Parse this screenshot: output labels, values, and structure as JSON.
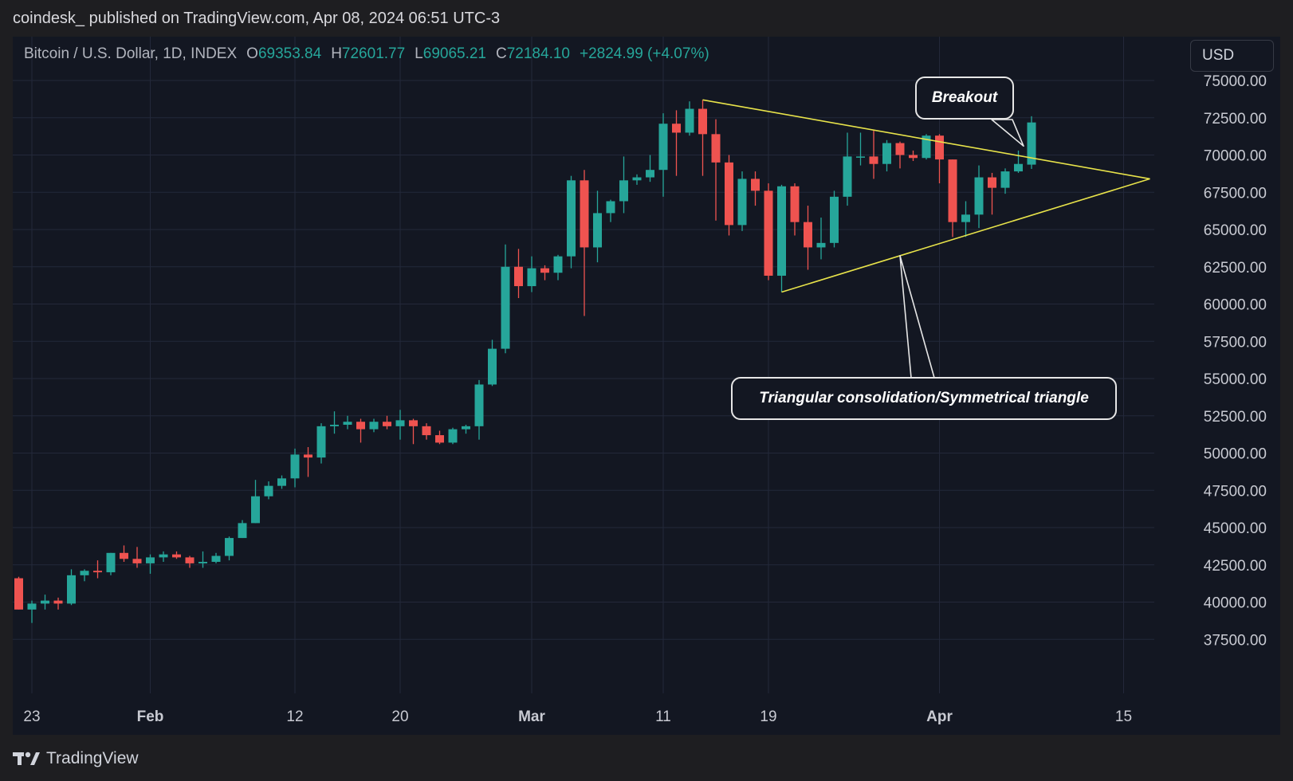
{
  "header": {
    "publisher_line": "coindesk_ published on TradingView.com, Apr 08, 2024 06:51 UTC-3"
  },
  "legend": {
    "symbol": "Bitcoin / U.S. Dollar, 1D, INDEX",
    "open_label": "O",
    "open": "69353.84",
    "high_label": "H",
    "high": "72601.77",
    "low_label": "L",
    "low": "69065.21",
    "close_label": "C",
    "close": "72184.10",
    "change": "+2824.99 (+4.07%)"
  },
  "currency_button": {
    "label": "USD"
  },
  "footer": {
    "brand": "TradingView",
    "logo_icon": "tradingview-logo-icon"
  },
  "colors": {
    "up": "#26a69a",
    "down": "#ef5350",
    "trendline": "#e8e34a",
    "background": "#131722",
    "grid": "#23283a",
    "axis_text": "#c8cad2"
  },
  "annotations": [
    {
      "text": "Breakout"
    },
    {
      "text": "Triangular consolidation/Symmetrical triangle"
    }
  ],
  "chart_data": {
    "type": "candlestick",
    "title": "Bitcoin / U.S. Dollar, 1D, INDEX",
    "currency": "USD",
    "ylim": [
      35000,
      75500
    ],
    "y_ticks": [
      "75000.00",
      "72500.00",
      "70000.00",
      "67500.00",
      "65000.00",
      "62500.00",
      "60000.00",
      "57500.00",
      "55000.00",
      "52500.00",
      "50000.00",
      "47500.00",
      "45000.00",
      "42500.00",
      "40000.00",
      "37500.00"
    ],
    "x_ticks": [
      {
        "label": "23",
        "date": "2024-01-23"
      },
      {
        "label": "Feb",
        "date": "2024-02-01"
      },
      {
        "label": "12",
        "date": "2024-02-12"
      },
      {
        "label": "20",
        "date": "2024-02-20"
      },
      {
        "label": "Mar",
        "date": "2024-03-01"
      },
      {
        "label": "11",
        "date": "2024-03-11"
      },
      {
        "label": "19",
        "date": "2024-03-19"
      },
      {
        "label": "Apr",
        "date": "2024-04-01"
      },
      {
        "label": "15",
        "date": "2024-04-15"
      }
    ],
    "grid": true,
    "candles": [
      {
        "date": "2024-01-22",
        "o": 41600,
        "h": 41700,
        "l": 39500,
        "c": 39500
      },
      {
        "date": "2024-01-23",
        "o": 39500,
        "h": 40100,
        "l": 38600,
        "c": 39900
      },
      {
        "date": "2024-01-24",
        "o": 39900,
        "h": 40500,
        "l": 39500,
        "c": 40100
      },
      {
        "date": "2024-01-25",
        "o": 40100,
        "h": 40300,
        "l": 39500,
        "c": 39900
      },
      {
        "date": "2024-01-26",
        "o": 39900,
        "h": 42200,
        "l": 39800,
        "c": 41800
      },
      {
        "date": "2024-01-27",
        "o": 41800,
        "h": 42200,
        "l": 41400,
        "c": 42100
      },
      {
        "date": "2024-01-28",
        "o": 42100,
        "h": 42800,
        "l": 41600,
        "c": 42000
      },
      {
        "date": "2024-01-29",
        "o": 42000,
        "h": 43300,
        "l": 41800,
        "c": 43300
      },
      {
        "date": "2024-01-30",
        "o": 43300,
        "h": 43800,
        "l": 42700,
        "c": 42900
      },
      {
        "date": "2024-01-31",
        "o": 42900,
        "h": 43700,
        "l": 42300,
        "c": 42600
      },
      {
        "date": "2024-02-01",
        "o": 42600,
        "h": 43200,
        "l": 41900,
        "c": 43000
      },
      {
        "date": "2024-02-02",
        "o": 43000,
        "h": 43400,
        "l": 42700,
        "c": 43200
      },
      {
        "date": "2024-02-03",
        "o": 43200,
        "h": 43400,
        "l": 42900,
        "c": 43000
      },
      {
        "date": "2024-02-04",
        "o": 43000,
        "h": 43100,
        "l": 42300,
        "c": 42600
      },
      {
        "date": "2024-02-05",
        "o": 42600,
        "h": 43400,
        "l": 42300,
        "c": 42700
      },
      {
        "date": "2024-02-06",
        "o": 42700,
        "h": 43300,
        "l": 42600,
        "c": 43100
      },
      {
        "date": "2024-02-07",
        "o": 43100,
        "h": 44400,
        "l": 42800,
        "c": 44300
      },
      {
        "date": "2024-02-08",
        "o": 44300,
        "h": 45500,
        "l": 44300,
        "c": 45300
      },
      {
        "date": "2024-02-09",
        "o": 45300,
        "h": 48200,
        "l": 45300,
        "c": 47100
      },
      {
        "date": "2024-02-10",
        "o": 47100,
        "h": 48100,
        "l": 46900,
        "c": 47800
      },
      {
        "date": "2024-02-11",
        "o": 47800,
        "h": 48500,
        "l": 47600,
        "c": 48300
      },
      {
        "date": "2024-02-12",
        "o": 48300,
        "h": 50300,
        "l": 47700,
        "c": 49900
      },
      {
        "date": "2024-02-13",
        "o": 49900,
        "h": 50400,
        "l": 48400,
        "c": 49700
      },
      {
        "date": "2024-02-14",
        "o": 49700,
        "h": 52000,
        "l": 49300,
        "c": 51800
      },
      {
        "date": "2024-02-15",
        "o": 51800,
        "h": 52800,
        "l": 51300,
        "c": 51900
      },
      {
        "date": "2024-02-16",
        "o": 51900,
        "h": 52500,
        "l": 51600,
        "c": 52100
      },
      {
        "date": "2024-02-17",
        "o": 52100,
        "h": 52300,
        "l": 50700,
        "c": 51600
      },
      {
        "date": "2024-02-18",
        "o": 51600,
        "h": 52300,
        "l": 51400,
        "c": 52100
      },
      {
        "date": "2024-02-19",
        "o": 52100,
        "h": 52500,
        "l": 51600,
        "c": 51800
      },
      {
        "date": "2024-02-20",
        "o": 51800,
        "h": 52900,
        "l": 50900,
        "c": 52200
      },
      {
        "date": "2024-02-21",
        "o": 52200,
        "h": 52300,
        "l": 50600,
        "c": 51800
      },
      {
        "date": "2024-02-22",
        "o": 51800,
        "h": 52000,
        "l": 50900,
        "c": 51200
      },
      {
        "date": "2024-02-23",
        "o": 51200,
        "h": 51500,
        "l": 50600,
        "c": 50700
      },
      {
        "date": "2024-02-24",
        "o": 50700,
        "h": 51700,
        "l": 50600,
        "c": 51600
      },
      {
        "date": "2024-02-25",
        "o": 51600,
        "h": 51900,
        "l": 51300,
        "c": 51800
      },
      {
        "date": "2024-02-26",
        "o": 51800,
        "h": 54900,
        "l": 50900,
        "c": 54600
      },
      {
        "date": "2024-02-27",
        "o": 54600,
        "h": 57600,
        "l": 54500,
        "c": 57000
      },
      {
        "date": "2024-02-28",
        "o": 57000,
        "h": 64000,
        "l": 56700,
        "c": 62500
      },
      {
        "date": "2024-02-29",
        "o": 62500,
        "h": 63700,
        "l": 60400,
        "c": 61200
      },
      {
        "date": "2024-03-01",
        "o": 61200,
        "h": 63200,
        "l": 60800,
        "c": 62400
      },
      {
        "date": "2024-03-02",
        "o": 62400,
        "h": 62600,
        "l": 61600,
        "c": 62100
      },
      {
        "date": "2024-03-03",
        "o": 62100,
        "h": 63300,
        "l": 61600,
        "c": 63200
      },
      {
        "date": "2024-03-04",
        "o": 63200,
        "h": 68600,
        "l": 62400,
        "c": 68300
      },
      {
        "date": "2024-03-05",
        "o": 68300,
        "h": 69000,
        "l": 59200,
        "c": 63800
      },
      {
        "date": "2024-03-06",
        "o": 63800,
        "h": 67600,
        "l": 62800,
        "c": 66100
      },
      {
        "date": "2024-03-07",
        "o": 66100,
        "h": 67000,
        "l": 65500,
        "c": 66900
      },
      {
        "date": "2024-03-08",
        "o": 66900,
        "h": 69900,
        "l": 66100,
        "c": 68300
      },
      {
        "date": "2024-03-09",
        "o": 68300,
        "h": 68700,
        "l": 68000,
        "c": 68500
      },
      {
        "date": "2024-03-10",
        "o": 68500,
        "h": 70000,
        "l": 68200,
        "c": 69000
      },
      {
        "date": "2024-03-11",
        "o": 69000,
        "h": 72800,
        "l": 67200,
        "c": 72100
      },
      {
        "date": "2024-03-12",
        "o": 72100,
        "h": 73000,
        "l": 68600,
        "c": 71500
      },
      {
        "date": "2024-03-13",
        "o": 71500,
        "h": 73600,
        "l": 71300,
        "c": 73100
      },
      {
        "date": "2024-03-14",
        "o": 73100,
        "h": 73700,
        "l": 68600,
        "c": 71400
      },
      {
        "date": "2024-03-15",
        "o": 71400,
        "h": 72400,
        "l": 65600,
        "c": 69500
      },
      {
        "date": "2024-03-16",
        "o": 69500,
        "h": 70000,
        "l": 64600,
        "c": 65300
      },
      {
        "date": "2024-03-17",
        "o": 65300,
        "h": 68900,
        "l": 64900,
        "c": 68400
      },
      {
        "date": "2024-03-18",
        "o": 68400,
        "h": 68900,
        "l": 66600,
        "c": 67600
      },
      {
        "date": "2024-03-19",
        "o": 67600,
        "h": 68100,
        "l": 61600,
        "c": 61900
      },
      {
        "date": "2024-03-20",
        "o": 61900,
        "h": 68000,
        "l": 60800,
        "c": 67900
      },
      {
        "date": "2024-03-21",
        "o": 67900,
        "h": 68100,
        "l": 64600,
        "c": 65500
      },
      {
        "date": "2024-03-22",
        "o": 65500,
        "h": 66600,
        "l": 62300,
        "c": 63800
      },
      {
        "date": "2024-03-23",
        "o": 63800,
        "h": 65800,
        "l": 63000,
        "c": 64100
      },
      {
        "date": "2024-03-24",
        "o": 64100,
        "h": 67600,
        "l": 63800,
        "c": 67200
      },
      {
        "date": "2024-03-25",
        "o": 67200,
        "h": 71500,
        "l": 66600,
        "c": 69900
      },
      {
        "date": "2024-03-26",
        "o": 69900,
        "h": 71500,
        "l": 69300,
        "c": 69900
      },
      {
        "date": "2024-03-27",
        "o": 69900,
        "h": 71700,
        "l": 68400,
        "c": 69400
      },
      {
        "date": "2024-03-28",
        "o": 69400,
        "h": 71000,
        "l": 68900,
        "c": 70800
      },
      {
        "date": "2024-03-29",
        "o": 70800,
        "h": 70900,
        "l": 69100,
        "c": 70000
      },
      {
        "date": "2024-03-30",
        "o": 70000,
        "h": 70300,
        "l": 69600,
        "c": 69800
      },
      {
        "date": "2024-03-31",
        "o": 69800,
        "h": 71400,
        "l": 69700,
        "c": 71300
      },
      {
        "date": "2024-04-01",
        "o": 71300,
        "h": 71400,
        "l": 68100,
        "c": 69700
      },
      {
        "date": "2024-04-02",
        "o": 69700,
        "h": 69700,
        "l": 64500,
        "c": 65500
      },
      {
        "date": "2024-04-03",
        "o": 65500,
        "h": 66900,
        "l": 64500,
        "c": 66000
      },
      {
        "date": "2024-04-04",
        "o": 66000,
        "h": 69300,
        "l": 65100,
        "c": 68500
      },
      {
        "date": "2024-04-05",
        "o": 68500,
        "h": 68800,
        "l": 66000,
        "c": 67800
      },
      {
        "date": "2024-04-06",
        "o": 67800,
        "h": 69100,
        "l": 67400,
        "c": 68900
      },
      {
        "date": "2024-04-07",
        "o": 68900,
        "h": 70300,
        "l": 68800,
        "c": 69400
      },
      {
        "date": "2024-04-08",
        "o": 69353.84,
        "h": 72601.77,
        "l": 69065.21,
        "c": 72184.1
      }
    ],
    "trendlines": [
      {
        "name": "upper",
        "from": {
          "date": "2024-03-14",
          "price": 73700
        },
        "to": {
          "date": "2024-04-17",
          "price": 68400
        }
      },
      {
        "name": "lower",
        "from": {
          "date": "2024-03-20",
          "price": 60800
        },
        "to": {
          "date": "2024-04-17",
          "price": 68400
        }
      }
    ]
  }
}
